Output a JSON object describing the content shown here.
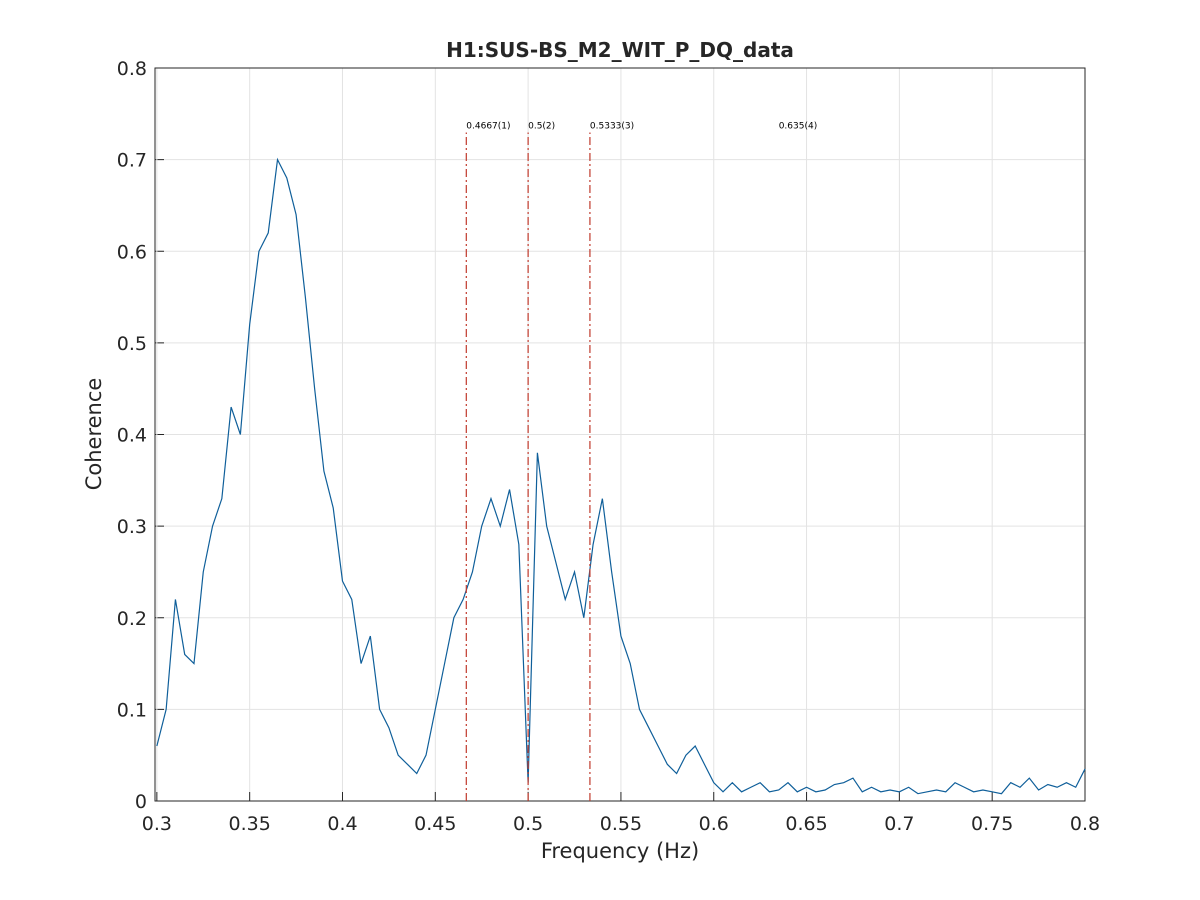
{
  "chart_data": {
    "type": "line",
    "title": "H1:SUS-BS_M2_WIT_P_DQ_data",
    "xlabel": "Frequency (Hz)",
    "ylabel": "Coherence",
    "x": [
      0.3,
      0.305,
      0.31,
      0.315,
      0.32,
      0.325,
      0.33,
      0.335,
      0.34,
      0.345,
      0.35,
      0.355,
      0.36,
      0.365,
      0.37,
      0.375,
      0.38,
      0.385,
      0.39,
      0.395,
      0.4,
      0.405,
      0.41,
      0.415,
      0.42,
      0.425,
      0.43,
      0.435,
      0.44,
      0.445,
      0.45,
      0.455,
      0.46,
      0.465,
      0.47,
      0.475,
      0.48,
      0.485,
      0.49,
      0.495,
      0.5,
      0.505,
      0.51,
      0.515,
      0.52,
      0.525,
      0.53,
      0.535,
      0.54,
      0.545,
      0.55,
      0.555,
      0.56,
      0.565,
      0.57,
      0.575,
      0.58,
      0.585,
      0.59,
      0.595,
      0.6,
      0.605,
      0.61,
      0.615,
      0.62,
      0.625,
      0.63,
      0.635,
      0.64,
      0.645,
      0.65,
      0.655,
      0.66,
      0.665,
      0.67,
      0.675,
      0.68,
      0.685,
      0.69,
      0.695,
      0.7,
      0.705,
      0.71,
      0.715,
      0.72,
      0.725,
      0.73,
      0.735,
      0.74,
      0.745,
      0.75,
      0.755,
      0.76,
      0.765,
      0.77,
      0.775,
      0.78,
      0.785,
      0.79,
      0.795,
      0.8
    ],
    "series": [
      {
        "name": "coherence",
        "color": "#0f5f9a",
        "values": [
          0.06,
          0.1,
          0.22,
          0.16,
          0.15,
          0.25,
          0.3,
          0.33,
          0.43,
          0.4,
          0.52,
          0.6,
          0.62,
          0.7,
          0.68,
          0.64,
          0.55,
          0.45,
          0.36,
          0.32,
          0.24,
          0.22,
          0.15,
          0.18,
          0.1,
          0.08,
          0.05,
          0.04,
          0.03,
          0.05,
          0.1,
          0.15,
          0.2,
          0.22,
          0.25,
          0.3,
          0.33,
          0.3,
          0.34,
          0.28,
          0.02,
          0.38,
          0.3,
          0.26,
          0.22,
          0.25,
          0.2,
          0.28,
          0.33,
          0.25,
          0.18,
          0.15,
          0.1,
          0.08,
          0.06,
          0.04,
          0.03,
          0.05,
          0.06,
          0.04,
          0.02,
          0.01,
          0.02,
          0.01,
          0.015,
          0.02,
          0.01,
          0.012,
          0.02,
          0.01,
          0.015,
          0.01,
          0.012,
          0.018,
          0.02,
          0.025,
          0.01,
          0.015,
          0.01,
          0.012,
          0.01,
          0.015,
          0.008,
          0.01,
          0.012,
          0.01,
          0.02,
          0.015,
          0.01,
          0.012,
          0.01,
          0.008,
          0.02,
          0.015,
          0.025,
          0.012,
          0.018,
          0.015,
          0.02,
          0.015,
          0.035
        ]
      }
    ],
    "annotations": [
      {
        "x": 0.4667,
        "label": "0.4667(1)",
        "line": true
      },
      {
        "x": 0.5,
        "label": "0.5(2)",
        "line": true
      },
      {
        "x": 0.5333,
        "label": "0.5333(3)",
        "line": true
      },
      {
        "x": 0.635,
        "label": "0.635(4)",
        "line": false
      }
    ],
    "annotation_color": "#c0392b",
    "xlim": [
      0.299,
      0.8
    ],
    "ylim": [
      0,
      0.8
    ],
    "xticks": [
      0.3,
      0.35,
      0.4,
      0.45,
      0.5,
      0.55,
      0.6,
      0.65,
      0.7,
      0.75,
      0.8
    ],
    "yticks": [
      0,
      0.1,
      0.2,
      0.3,
      0.4,
      0.5,
      0.6,
      0.7,
      0.8
    ],
    "grid": true
  }
}
